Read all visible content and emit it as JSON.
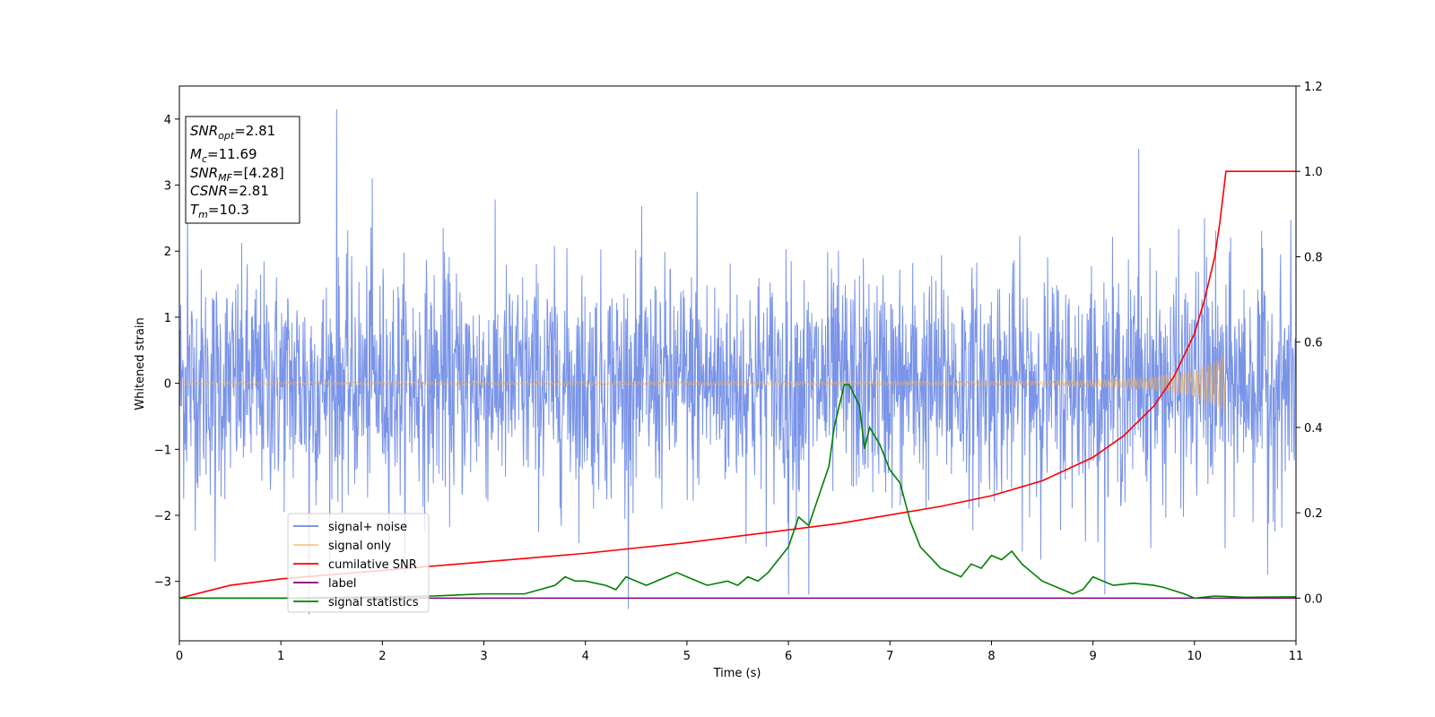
{
  "chart_data": {
    "type": "line",
    "xlabel": "Time (s)",
    "ylabel": "Whitened strain",
    "xlim": [
      0,
      11
    ],
    "ylim_left": [
      -3.9,
      4.5
    ],
    "ylim_right": [
      -0.1,
      1.2
    ],
    "x_ticks": [
      0,
      1,
      2,
      3,
      4,
      5,
      6,
      7,
      8,
      9,
      10,
      11
    ],
    "x_tick_labels": [
      "0",
      "1",
      "2",
      "3",
      "4",
      "5",
      "6",
      "7",
      "8",
      "9",
      "10",
      "11"
    ],
    "y_left_ticks": [
      -3,
      -2,
      -1,
      0,
      1,
      2,
      3,
      4
    ],
    "y_left_tick_labels": [
      "−3",
      "−2",
      "−1",
      "0",
      "1",
      "2",
      "3",
      "4"
    ],
    "y_right_ticks": [
      0.0,
      0.2,
      0.4,
      0.6,
      0.8,
      1.0,
      1.2
    ],
    "y_right_tick_labels": [
      "0.0",
      "0.2",
      "0.4",
      "0.6",
      "0.8",
      "1.0",
      "1.2"
    ],
    "grid": false,
    "legend_position": "lower-left",
    "legend": [
      {
        "label": "signal+ noise",
        "color": "#6b88e6"
      },
      {
        "label": "signal only",
        "color": "#f5b04f"
      },
      {
        "label": "cumilative SNR",
        "color": "#ff0000"
      },
      {
        "label": "label",
        "color": "#800080"
      },
      {
        "label": "signal statistics",
        "color": "#008000"
      }
    ],
    "annotation": {
      "position": "top-left",
      "lines": [
        {
          "base": "SNR",
          "sub": "opt",
          "value": "=2.81"
        },
        {
          "base": "M",
          "sub": "c",
          "value": "=11.69"
        },
        {
          "base": "SNR",
          "sub": "MF",
          "value": "=[4.28]"
        },
        {
          "base": "CSNR",
          "sub": "",
          "value": "=2.81"
        },
        {
          "base": "T",
          "sub": "m",
          "value": "=10.3"
        }
      ]
    },
    "series": [
      {
        "name": "signal+ noise",
        "axis": "left",
        "color": "#6b88e6",
        "style": "noise",
        "amplitude_std": 0.85,
        "x_range": [
          0,
          11
        ],
        "extreme_peaks": [
          [
            0.08,
            2.6
          ],
          [
            0.35,
            -2.7
          ],
          [
            1.28,
            -3.5
          ],
          [
            1.55,
            4.15
          ],
          [
            1.9,
            3.1
          ],
          [
            2.6,
            2.35
          ],
          [
            5.1,
            2.9
          ],
          [
            6.0,
            -3.2
          ],
          [
            6.2,
            -3.2
          ],
          [
            9.45,
            3.55
          ],
          [
            10.1,
            2.5
          ],
          [
            10.3,
            -2.5
          ],
          [
            10.72,
            -2.9
          ]
        ]
      },
      {
        "name": "signal only",
        "axis": "left",
        "color": "#f5b04f",
        "style": "chirp",
        "x_range": [
          0,
          10.3
        ],
        "envelope": [
          [
            0,
            0.02
          ],
          [
            8.5,
            0.03
          ],
          [
            9.5,
            0.08
          ],
          [
            10.0,
            0.2
          ],
          [
            10.25,
            0.38
          ],
          [
            10.3,
            0.45
          ]
        ]
      },
      {
        "name": "cumilative SNR",
        "axis": "right",
        "color": "#ff0000",
        "x": [
          0,
          0.5,
          1,
          2,
          3,
          4,
          5,
          6,
          6.5,
          7,
          7.5,
          8,
          8.5,
          9,
          9.3,
          9.6,
          9.8,
          10.0,
          10.1,
          10.2,
          10.25,
          10.3,
          10.31,
          11
        ],
        "y": [
          0.0,
          0.03,
          0.045,
          0.065,
          0.085,
          0.105,
          0.13,
          0.16,
          0.175,
          0.195,
          0.215,
          0.24,
          0.275,
          0.33,
          0.38,
          0.45,
          0.52,
          0.62,
          0.7,
          0.8,
          0.88,
          0.98,
          1.0,
          1.0
        ]
      },
      {
        "name": "label",
        "axis": "right",
        "color": "#800080",
        "x": [
          0,
          11
        ],
        "y": [
          0.0,
          0.0
        ]
      },
      {
        "name": "signal statistics",
        "axis": "right",
        "color": "#008000",
        "x": [
          0,
          1.0,
          2.0,
          2.5,
          3.0,
          3.4,
          3.7,
          3.8,
          3.9,
          4.0,
          4.2,
          4.3,
          4.4,
          4.5,
          4.6,
          4.7,
          4.8,
          4.9,
          5.0,
          5.2,
          5.4,
          5.5,
          5.6,
          5.7,
          5.8,
          5.9,
          6.0,
          6.1,
          6.2,
          6.3,
          6.4,
          6.45,
          6.55,
          6.6,
          6.7,
          6.75,
          6.8,
          6.9,
          7.0,
          7.1,
          7.2,
          7.3,
          7.5,
          7.7,
          7.8,
          7.9,
          8.0,
          8.1,
          8.2,
          8.3,
          8.5,
          8.8,
          8.9,
          9.0,
          9.1,
          9.2,
          9.4,
          9.6,
          9.7,
          9.9,
          10.0,
          10.2,
          10.5,
          11.0
        ],
        "y": [
          0.0,
          0.0,
          0.003,
          0.005,
          0.01,
          0.01,
          0.03,
          0.05,
          0.04,
          0.04,
          0.03,
          0.02,
          0.05,
          0.04,
          0.03,
          0.04,
          0.05,
          0.06,
          0.05,
          0.03,
          0.04,
          0.03,
          0.05,
          0.04,
          0.06,
          0.09,
          0.12,
          0.19,
          0.17,
          0.24,
          0.31,
          0.4,
          0.5,
          0.5,
          0.45,
          0.35,
          0.4,
          0.36,
          0.3,
          0.27,
          0.18,
          0.12,
          0.07,
          0.05,
          0.08,
          0.07,
          0.1,
          0.09,
          0.11,
          0.08,
          0.04,
          0.01,
          0.02,
          0.05,
          0.04,
          0.03,
          0.035,
          0.03,
          0.025,
          0.01,
          0.0,
          0.005,
          0.002,
          0.003
        ]
      }
    ]
  }
}
